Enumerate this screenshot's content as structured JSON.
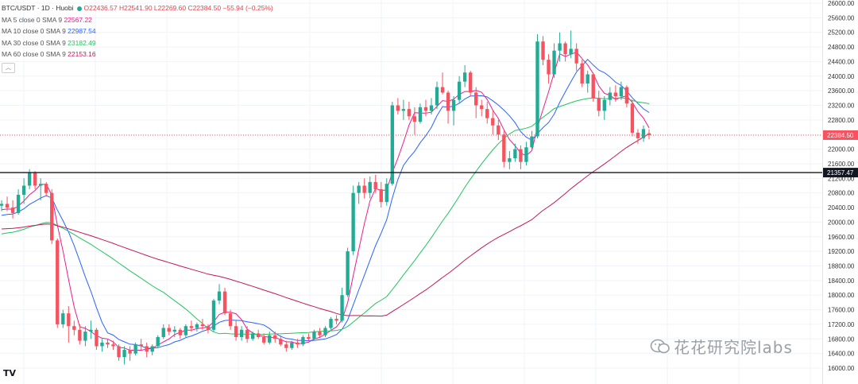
{
  "legend": {
    "symbol": "BTC/USDT · 1D · Huobi",
    "ohlc": "O22436.57 H22541.90 L22269.60 C22384.50 −55.94 (−0.25%)",
    "mas": [
      {
        "label": "MA 5 close 0 SMA 9",
        "value": "22567.22",
        "color": "#e91e8c"
      },
      {
        "label": "MA 10 close 0 SMA 9",
        "value": "22987.54",
        "color": "#2962ff"
      },
      {
        "label": "MA 30 close 0 SMA 9",
        "value": "23182.49",
        "color": "#22c55e"
      },
      {
        "label": "MA 60 close 0 SMA 9",
        "value": "22153.16",
        "color": "#c2185b"
      }
    ],
    "collapse_icon": "chevron-up-icon"
  },
  "watermark": "花花研究院labs",
  "logo": "TV",
  "colors": {
    "up": "#22ab94",
    "down": "#f7525f",
    "grid": "#f0f3fa",
    "axis_text": "#333333"
  },
  "chart_data": {
    "type": "candlestick",
    "ylim": [
      15800,
      26200
    ],
    "y_ticks": [
      "16000.00",
      "16400.00",
      "16800.00",
      "17200.00",
      "17600.00",
      "18000.00",
      "18400.00",
      "18800.00",
      "19200.00",
      "19600.00",
      "20000.00",
      "20400.00",
      "20800.00",
      "21200.00",
      "21600.00",
      "22000.00",
      "22400.00",
      "22800.00",
      "23200.00",
      "23600.00",
      "24000.00",
      "24400.00",
      "24800.00",
      "25200.00",
      "25600.00",
      "26000.00"
    ],
    "price_label": "22384.50",
    "hline_label": "21357.47",
    "hline_value": 21357.47,
    "candles": [
      [
        20450,
        20600,
        20300,
        20500
      ],
      [
        20500,
        20700,
        20300,
        20400
      ],
      [
        20400,
        20600,
        20100,
        20250
      ],
      [
        20250,
        20900,
        20200,
        20750
      ],
      [
        20750,
        21200,
        20500,
        21000
      ],
      [
        21000,
        21450,
        20900,
        21350
      ],
      [
        21350,
        21400,
        20900,
        21000
      ],
      [
        21000,
        21200,
        20600,
        21050
      ],
      [
        21050,
        21100,
        20700,
        20800
      ],
      [
        20800,
        20900,
        19400,
        19500
      ],
      [
        19500,
        19550,
        17100,
        17200
      ],
      [
        17200,
        17600,
        17100,
        17500
      ],
      [
        17500,
        17700,
        16700,
        17150
      ],
      [
        17150,
        17300,
        16900,
        17050
      ],
      [
        17050,
        17200,
        16650,
        16750
      ],
      [
        16750,
        17150,
        16600,
        17000
      ],
      [
        17000,
        17300,
        16800,
        17050
      ],
      [
        17050,
        17100,
        16500,
        16600
      ],
      [
        16600,
        16800,
        16450,
        16700
      ],
      [
        16700,
        16800,
        16550,
        16650
      ],
      [
        16650,
        16750,
        16500,
        16600
      ],
      [
        16600,
        16650,
        16200,
        16300
      ],
      [
        16300,
        16600,
        16100,
        16500
      ],
      [
        16500,
        16600,
        16200,
        16400
      ],
      [
        16400,
        16700,
        16350,
        16650
      ],
      [
        16650,
        16800,
        16500,
        16600
      ],
      [
        16600,
        16700,
        16300,
        16450
      ],
      [
        16450,
        16650,
        16350,
        16600
      ],
      [
        16600,
        16900,
        16550,
        16850
      ],
      [
        16850,
        17200,
        16800,
        17100
      ],
      [
        17100,
        17200,
        16900,
        17000
      ],
      [
        17000,
        17150,
        16850,
        17050
      ],
      [
        17050,
        17100,
        16800,
        16900
      ],
      [
        16900,
        17200,
        16850,
        17150
      ],
      [
        17150,
        17300,
        17000,
        17100
      ],
      [
        17100,
        17250,
        17000,
        17200
      ],
      [
        17200,
        17350,
        17050,
        17150
      ],
      [
        17150,
        17200,
        16950,
        17050
      ],
      [
        17050,
        17900,
        17000,
        17850
      ],
      [
        17850,
        18300,
        17750,
        18100
      ],
      [
        18100,
        18200,
        17450,
        17500
      ],
      [
        17500,
        17600,
        17050,
        17150
      ],
      [
        17150,
        17300,
        16750,
        16850
      ],
      [
        16850,
        17150,
        16750,
        17050
      ],
      [
        17050,
        17150,
        16700,
        16800
      ],
      [
        16800,
        17000,
        16750,
        16950
      ],
      [
        16950,
        17050,
        16800,
        16850
      ],
      [
        16850,
        16950,
        16650,
        16700
      ],
      [
        16700,
        17000,
        16650,
        16900
      ],
      [
        16900,
        17000,
        16700,
        16800
      ],
      [
        16800,
        16900,
        16600,
        16650
      ],
      [
        16650,
        16750,
        16450,
        16550
      ],
      [
        16550,
        16750,
        16500,
        16700
      ],
      [
        16700,
        16800,
        16550,
        16650
      ],
      [
        16650,
        16900,
        16600,
        16850
      ],
      [
        16850,
        16950,
        16750,
        16800
      ],
      [
        16800,
        17050,
        16750,
        17000
      ],
      [
        17000,
        17100,
        16850,
        16900
      ],
      [
        16900,
        17150,
        16850,
        17100
      ],
      [
        17100,
        17400,
        17050,
        17350
      ],
      [
        17350,
        17450,
        17200,
        17300
      ],
      [
        17300,
        18200,
        17250,
        18000
      ],
      [
        18000,
        19300,
        17950,
        19200
      ],
      [
        19200,
        21000,
        19100,
        20800
      ],
      [
        20800,
        21100,
        20500,
        21000
      ],
      [
        21000,
        21200,
        20650,
        20800
      ],
      [
        20800,
        21250,
        20650,
        21100
      ],
      [
        21100,
        21300,
        20800,
        20900
      ],
      [
        20900,
        21100,
        20400,
        20550
      ],
      [
        20550,
        21200,
        20450,
        21050
      ],
      [
        21050,
        23300,
        21000,
        23200
      ],
      [
        23200,
        23400,
        22950,
        23050
      ],
      [
        23050,
        23350,
        22800,
        23100
      ],
      [
        23100,
        23300,
        22800,
        22900
      ],
      [
        22900,
        23150,
        22400,
        22750
      ],
      [
        22750,
        23250,
        22700,
        23150
      ],
      [
        23150,
        23350,
        22900,
        23050
      ],
      [
        23050,
        23400,
        22950,
        23200
      ],
      [
        23200,
        23850,
        23100,
        23700
      ],
      [
        23700,
        24100,
        23500,
        23550
      ],
      [
        23550,
        23600,
        22700,
        23050
      ],
      [
        23050,
        23450,
        22650,
        23350
      ],
      [
        23350,
        24000,
        23250,
        23850
      ],
      [
        23850,
        24300,
        23700,
        24100
      ],
      [
        24100,
        24150,
        23450,
        23550
      ],
      [
        23550,
        23700,
        22850,
        23200
      ],
      [
        23200,
        23350,
        22900,
        23100
      ],
      [
        23100,
        23300,
        22700,
        22850
      ],
      [
        22850,
        23050,
        22400,
        22650
      ],
      [
        22650,
        22800,
        22250,
        22400
      ],
      [
        22400,
        22500,
        21500,
        21650
      ],
      [
        21650,
        21950,
        21450,
        21750
      ],
      [
        21750,
        22150,
        21650,
        22000
      ],
      [
        22000,
        22100,
        21450,
        21650
      ],
      [
        21650,
        22200,
        21550,
        22050
      ],
      [
        22050,
        22500,
        21950,
        22350
      ],
      [
        22350,
        25150,
        22300,
        24950
      ],
      [
        24950,
        25100,
        24300,
        24450
      ],
      [
        24450,
        24600,
        23800,
        24050
      ],
      [
        24050,
        24900,
        23950,
        24700
      ],
      [
        24700,
        25200,
        24400,
        24900
      ],
      [
        24900,
        24950,
        24400,
        24600
      ],
      [
        24600,
        25250,
        24500,
        24750
      ],
      [
        24750,
        24900,
        24150,
        24350
      ],
      [
        24350,
        24450,
        23700,
        23800
      ],
      [
        23800,
        24150,
        23550,
        24050
      ],
      [
        24050,
        24100,
        23300,
        23400
      ],
      [
        23400,
        23600,
        22900,
        23050
      ],
      [
        23050,
        23450,
        22800,
        23350
      ],
      [
        23350,
        23700,
        23200,
        23550
      ],
      [
        23550,
        23750,
        23300,
        23450
      ],
      [
        23450,
        23850,
        23350,
        23700
      ],
      [
        23700,
        23750,
        23150,
        23250
      ],
      [
        23250,
        23350,
        22350,
        22450
      ],
      [
        22450,
        22550,
        22150,
        22300
      ],
      [
        22300,
        22650,
        22200,
        22550
      ],
      [
        22436.57,
        22541.9,
        22269.6,
        22384.5
      ]
    ]
  }
}
